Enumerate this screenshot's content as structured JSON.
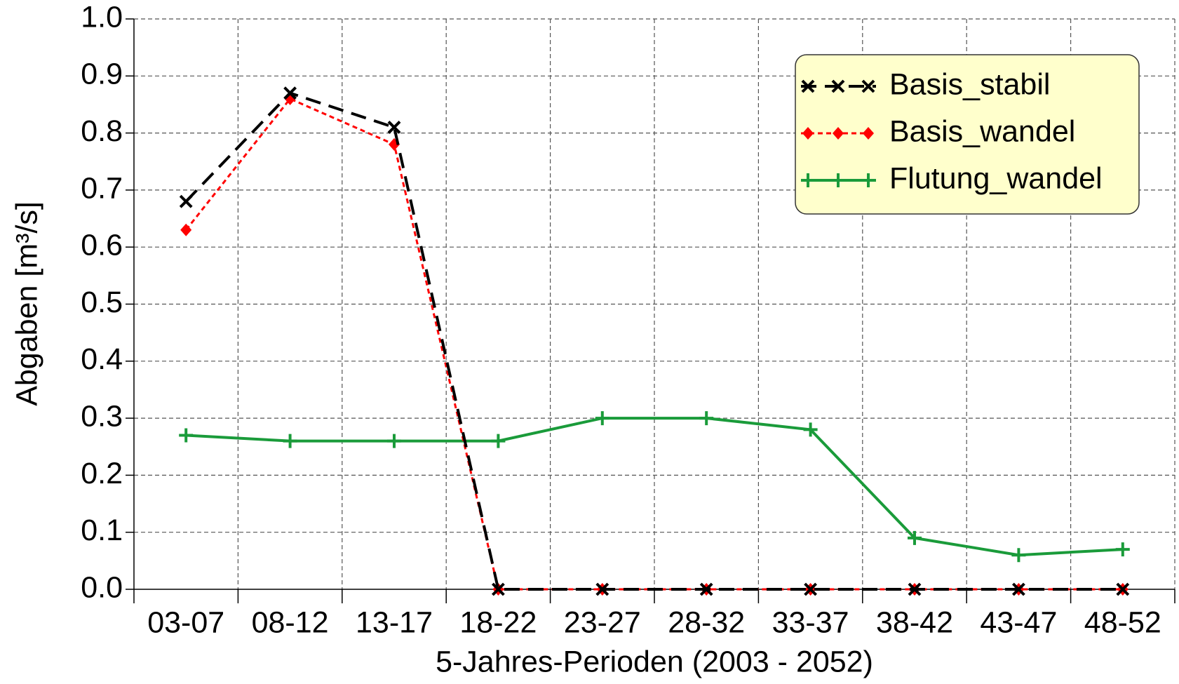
{
  "chart_data": {
    "type": "line",
    "xlabel": "5-Jahres-Perioden (2003 - 2052)",
    "ylabel": "Abgaben [m³/s]",
    "categories": [
      "03-07",
      "08-12",
      "13-17",
      "18-22",
      "23-27",
      "28-32",
      "33-37",
      "38-42",
      "43-47",
      "48-52"
    ],
    "series": [
      {
        "name": "Basis_stabil",
        "color": "#000000",
        "values": [
          0.68,
          0.87,
          0.81,
          0,
          0,
          0,
          0,
          0,
          0,
          0
        ]
      },
      {
        "name": "Basis_wandel",
        "color": "#ff0000",
        "values": [
          0.63,
          0.86,
          0.78,
          0,
          0,
          0,
          0,
          0,
          0,
          0
        ]
      },
      {
        "name": "Flutung_wandel",
        "color": "#1a9b3a",
        "values": [
          0.27,
          0.26,
          0.26,
          0.26,
          0.3,
          0.3,
          0.28,
          0.09,
          0.06,
          0.07
        ]
      }
    ],
    "ylim": [
      0,
      1
    ],
    "yticks": [
      {
        "value": 0,
        "label": "0.0"
      },
      0.1,
      0.2,
      0.3,
      0.4,
      0.5,
      0.6,
      0.7,
      0.8,
      0.9,
      {
        "value": 1,
        "label": "1.0"
      }
    ],
    "grid": true,
    "legend": "upper right"
  }
}
